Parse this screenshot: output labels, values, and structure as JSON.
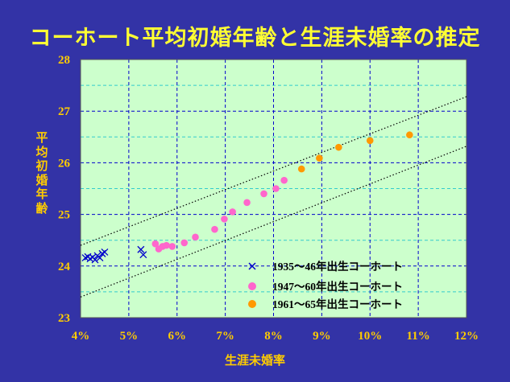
{
  "chart_data": {
    "type": "scatter",
    "title": "コーホート平均初婚年齢と生涯未婚率の推定",
    "xlabel": "生涯未婚率",
    "ylabel": "平均初婚年齢",
    "xlim": [
      4,
      12
    ],
    "ylim": [
      23,
      28
    ],
    "x_ticks": [
      "4%",
      "5%",
      "6%",
      "7%",
      "8%",
      "9%",
      "10%",
      "11%",
      "12%"
    ],
    "y_ticks": [
      "23",
      "24",
      "25",
      "26",
      "27",
      "28"
    ],
    "grid": true,
    "legend_position": "lower-right",
    "series": [
      {
        "name": "1935～46年出生コーホート",
        "marker": "x",
        "color": "#0000cc",
        "points": [
          [
            4.1,
            24.16
          ],
          [
            4.15,
            24.18
          ],
          [
            4.2,
            24.14
          ],
          [
            4.25,
            24.17
          ],
          [
            4.3,
            24.12
          ],
          [
            4.35,
            24.2
          ],
          [
            4.4,
            24.16
          ],
          [
            4.45,
            24.24
          ],
          [
            4.5,
            24.27
          ],
          [
            5.25,
            24.32
          ],
          [
            5.3,
            24.22
          ]
        ]
      },
      {
        "name": "1947～60年出生コーホート",
        "marker": "circle",
        "color": "#ff66cc",
        "points": [
          [
            5.55,
            24.43
          ],
          [
            5.62,
            24.33
          ],
          [
            5.7,
            24.38
          ],
          [
            5.78,
            24.4
          ],
          [
            5.9,
            24.38
          ],
          [
            6.15,
            24.45
          ],
          [
            6.38,
            24.56
          ],
          [
            6.78,
            24.71
          ],
          [
            6.98,
            24.91
          ],
          [
            7.15,
            25.05
          ],
          [
            7.45,
            25.23
          ],
          [
            7.8,
            25.4
          ],
          [
            8.05,
            25.5
          ],
          [
            8.22,
            25.66
          ]
        ]
      },
      {
        "name": "1961～65年出生コーホート",
        "marker": "circle",
        "color": "#ff9900",
        "points": [
          [
            8.58,
            25.88
          ],
          [
            8.95,
            26.09
          ],
          [
            9.35,
            26.3
          ],
          [
            10.0,
            26.43
          ],
          [
            10.82,
            26.54
          ]
        ]
      }
    ],
    "trend_lines": [
      {
        "style": "dotted",
        "x": [
          4,
          12
        ],
        "y": [
          24.4,
          27.28
        ]
      },
      {
        "style": "dotted",
        "x": [
          4,
          12
        ],
        "y": [
          23.4,
          26.32
        ]
      }
    ],
    "colors": {
      "background": "#3333a6",
      "plot_area": "#ccffcc",
      "title": "#ffff33",
      "labels": "#ffcc00",
      "grid_major": "#0000cc",
      "grid_minor": "#33cccc"
    }
  }
}
